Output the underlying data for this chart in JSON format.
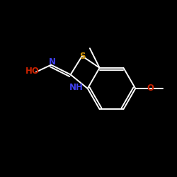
{
  "background_color": "#000000",
  "bond_color": "#ffffff",
  "S_color": "#d4960a",
  "N_color": "#4040ee",
  "O_color": "#cc2200",
  "label_S": "S",
  "label_N": "N",
  "label_NH": "NH",
  "label_HO": "HO",
  "label_O": "O",
  "figsize": [
    2.5,
    2.5
  ],
  "dpi": 100,
  "xlim": [
    0,
    10
  ],
  "ylim": [
    0,
    10
  ]
}
